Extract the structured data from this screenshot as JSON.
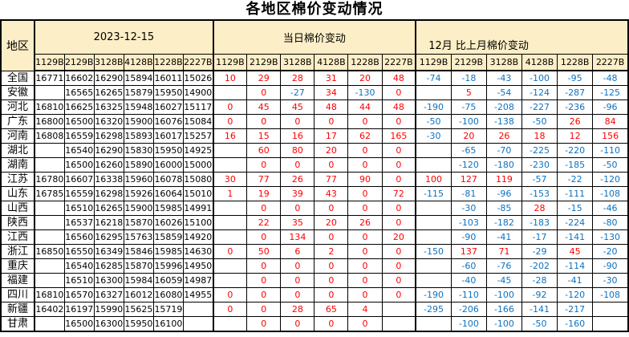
{
  "title": "各地区棉价变动情况",
  "colors": {
    "header_bg": "#FCEEC6",
    "positive_value": "#FE0000",
    "negative_value": "#0D72C0",
    "border": "#000000",
    "background": "#FFFFFF"
  },
  "chart_data": {
    "type": "table",
    "title": "各地区棉价变动情况",
    "region_header": "地区",
    "column_groups": [
      {
        "label": "2023-12-15"
      },
      {
        "label": "当日棉价变动"
      },
      {
        "label": "12月 比上月棉价变动"
      }
    ],
    "grades": [
      "1129B",
      "2129B",
      "3128B",
      "4128B",
      "1228B",
      "2227B"
    ],
    "rows": [
      {
        "region": "全国",
        "prices": [
          16771,
          16602,
          16290,
          15894,
          16011,
          15026
        ],
        "daily_change": [
          10,
          29,
          28,
          31,
          20,
          48
        ],
        "monthly_change": [
          -74,
          -18,
          -43,
          -100,
          -95,
          -48
        ]
      },
      {
        "region": "安徽",
        "prices": [
          null,
          16565,
          16265,
          15879,
          15950,
          14900
        ],
        "daily_change": [
          null,
          0,
          -27,
          34,
          -130,
          0
        ],
        "monthly_change": [
          null,
          5,
          -54,
          -124,
          -287,
          -125
        ]
      },
      {
        "region": "河北",
        "prices": [
          16810,
          16625,
          16325,
          15948,
          16027,
          15117
        ],
        "daily_change": [
          0,
          45,
          45,
          48,
          44,
          48
        ],
        "monthly_change": [
          -190,
          -75,
          -208,
          -227,
          -236,
          -96
        ]
      },
      {
        "region": "广东",
        "prices": [
          16800,
          16500,
          16320,
          15900,
          16076,
          15084
        ],
        "daily_change": [
          0,
          0,
          0,
          0,
          0,
          0
        ],
        "monthly_change": [
          -50,
          -100,
          -138,
          -50,
          26,
          84
        ]
      },
      {
        "region": "河南",
        "prices": [
          16808,
          16559,
          16298,
          15893,
          16017,
          15257
        ],
        "daily_change": [
          16,
          15,
          16,
          17,
          62,
          165
        ],
        "monthly_change": [
          -30,
          20,
          26,
          18,
          12,
          156
        ]
      },
      {
        "region": "湖北",
        "prices": [
          null,
          16540,
          16290,
          15830,
          15950,
          14925
        ],
        "daily_change": [
          null,
          60,
          80,
          20,
          0,
          0
        ],
        "monthly_change": [
          null,
          -65,
          -70,
          -225,
          -220,
          -110
        ]
      },
      {
        "region": "湖南",
        "prices": [
          null,
          16500,
          16260,
          15890,
          16000,
          15000
        ],
        "daily_change": [
          null,
          0,
          0,
          0,
          0,
          0
        ],
        "monthly_change": [
          null,
          -120,
          -180,
          -230,
          -185,
          -50
        ]
      },
      {
        "region": "江苏",
        "prices": [
          16780,
          16607,
          16338,
          15960,
          16078,
          15080
        ],
        "daily_change": [
          30,
          77,
          26,
          77,
          90,
          0
        ],
        "monthly_change": [
          100,
          127,
          119,
          -57,
          -22,
          -120
        ]
      },
      {
        "region": "山东",
        "prices": [
          16785,
          16559,
          16298,
          15926,
          16064,
          15010
        ],
        "daily_change": [
          1,
          19,
          39,
          43,
          0,
          72
        ],
        "monthly_change": [
          -115,
          -81,
          -96,
          -153,
          -111,
          -108
        ]
      },
      {
        "region": "山西",
        "prices": [
          null,
          16510,
          16265,
          15900,
          15985,
          14991
        ],
        "daily_change": [
          null,
          0,
          0,
          0,
          0,
          0
        ],
        "monthly_change": [
          null,
          -30,
          -85,
          28,
          -15,
          -46
        ]
      },
      {
        "region": "陕西",
        "prices": [
          null,
          16537,
          16218,
          15870,
          16026,
          15100
        ],
        "daily_change": [
          null,
          22,
          35,
          20,
          26,
          0
        ],
        "monthly_change": [
          null,
          -103,
          -182,
          -183,
          -224,
          -80
        ]
      },
      {
        "region": "江西",
        "prices": [
          null,
          16560,
          16295,
          15763,
          15859,
          14920
        ],
        "daily_change": [
          null,
          0,
          134,
          0,
          0,
          20
        ],
        "monthly_change": [
          null,
          -90,
          -41,
          -17,
          -141,
          -130
        ]
      },
      {
        "region": "浙江",
        "prices": [
          16850,
          16550,
          16349,
          15846,
          15985,
          14630
        ],
        "daily_change": [
          0,
          50,
          6,
          2,
          0,
          0
        ],
        "monthly_change": [
          -150,
          137,
          71,
          -29,
          45,
          -20
        ]
      },
      {
        "region": "重庆",
        "prices": [
          null,
          16540,
          16285,
          15870,
          15996,
          14950
        ],
        "daily_change": [
          null,
          0,
          0,
          0,
          0,
          0
        ],
        "monthly_change": [
          null,
          -60,
          -76,
          -202,
          -114,
          -90
        ]
      },
      {
        "region": "福建",
        "prices": [
          null,
          16510,
          16300,
          15984,
          16059,
          14987
        ],
        "daily_change": [
          null,
          0,
          0,
          0,
          0,
          0
        ],
        "monthly_change": [
          null,
          -40,
          -45,
          -28,
          -41,
          -30
        ]
      },
      {
        "region": "四川",
        "prices": [
          16810,
          16570,
          16327,
          16012,
          16080,
          14955
        ],
        "daily_change": [
          0,
          0,
          0,
          0,
          0,
          0
        ],
        "monthly_change": [
          -190,
          -110,
          -100,
          -92,
          -120,
          -108
        ]
      },
      {
        "region": "新疆",
        "prices": [
          16402,
          16197,
          15990,
          15625,
          15719,
          null
        ],
        "daily_change": [
          0,
          0,
          28,
          65,
          4,
          null
        ],
        "monthly_change": [
          -295,
          -206,
          -166,
          -141,
          -217,
          null
        ]
      },
      {
        "region": "甘肃",
        "prices": [
          null,
          16500,
          16300,
          15950,
          16100,
          null
        ],
        "daily_change": [
          null,
          0,
          0,
          0,
          0,
          null
        ],
        "monthly_change": [
          null,
          -100,
          -100,
          -50,
          -160,
          null
        ]
      }
    ]
  }
}
